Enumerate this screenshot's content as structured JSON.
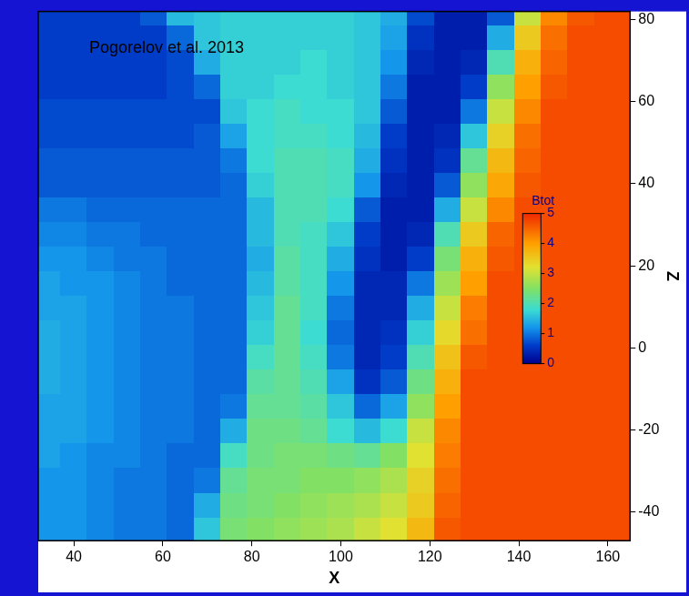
{
  "chart_data": {
    "type": "heatmap",
    "annotations": [
      "Pogorelov et al. 2013"
    ],
    "x_label": "X",
    "y_label": "Z",
    "x": [
      34,
      40,
      46,
      52,
      58,
      64,
      70,
      76,
      82,
      88,
      94,
      100,
      106,
      112,
      118,
      124,
      130,
      136,
      142,
      148,
      154,
      160,
      166
    ],
    "y": [
      -44,
      -38,
      -32,
      -26,
      -20,
      -14,
      -8,
      -2,
      4,
      10,
      16,
      22,
      28,
      34,
      40,
      46,
      52,
      58,
      64,
      70,
      76,
      82
    ],
    "values": [
      [
        1.2,
        1.2,
        1.1,
        1.0,
        1.0,
        0.9,
        1.6,
        2.4,
        2.5,
        2.6,
        2.7,
        2.8,
        3.0,
        3.2,
        3.7,
        4.6,
        4.7,
        4.7,
        4.7,
        4.7,
        4.7,
        4.7,
        4.7
      ],
      [
        1.2,
        1.2,
        1.1,
        1.0,
        1.0,
        0.9,
        1.4,
        2.3,
        2.4,
        2.5,
        2.6,
        2.7,
        2.8,
        3.0,
        3.5,
        4.5,
        4.7,
        4.7,
        4.7,
        4.7,
        4.7,
        4.7,
        4.7
      ],
      [
        1.2,
        1.2,
        1.1,
        1.0,
        1.0,
        0.9,
        1.0,
        2.2,
        2.4,
        2.4,
        2.5,
        2.5,
        2.6,
        2.8,
        3.4,
        4.4,
        4.7,
        4.7,
        4.7,
        4.7,
        4.7,
        4.7,
        4.7
      ],
      [
        1.3,
        1.2,
        1.1,
        1.1,
        1.0,
        0.9,
        0.9,
        1.9,
        2.3,
        2.4,
        2.4,
        2.3,
        2.2,
        2.5,
        3.2,
        4.3,
        4.7,
        4.7,
        4.7,
        4.7,
        4.7,
        4.7,
        4.7
      ],
      [
        1.3,
        1.3,
        1.2,
        1.1,
        1.0,
        1.0,
        0.9,
        1.4,
        2.3,
        2.3,
        2.2,
        1.8,
        1.5,
        1.8,
        3.0,
        4.2,
        4.7,
        4.7,
        4.7,
        4.7,
        4.7,
        4.7,
        4.7
      ],
      [
        1.3,
        1.3,
        1.2,
        1.1,
        1.0,
        1.0,
        0.9,
        1.0,
        2.2,
        2.2,
        2.1,
        1.6,
        0.9,
        1.3,
        2.6,
        4.0,
        4.7,
        4.7,
        4.7,
        4.7,
        4.7,
        4.7,
        4.7
      ],
      [
        1.4,
        1.3,
        1.2,
        1.1,
        1.0,
        1.0,
        0.9,
        0.9,
        2.1,
        2.2,
        2.0,
        1.3,
        0.5,
        0.8,
        2.3,
        3.8,
        4.7,
        4.7,
        4.7,
        4.7,
        4.7,
        4.7,
        4.7
      ],
      [
        1.4,
        1.3,
        1.2,
        1.1,
        1.0,
        1.0,
        0.9,
        0.9,
        1.9,
        2.2,
        1.9,
        1.0,
        0.4,
        0.6,
        2.0,
        3.6,
        4.6,
        4.7,
        4.7,
        4.7,
        4.7,
        4.7,
        4.7
      ],
      [
        1.4,
        1.3,
        1.2,
        1.1,
        1.0,
        1.0,
        0.9,
        0.9,
        1.7,
        2.2,
        1.8,
        0.9,
        0.4,
        0.5,
        1.7,
        3.3,
        4.4,
        4.7,
        4.7,
        4.7,
        4.7,
        4.7,
        4.7
      ],
      [
        1.3,
        1.3,
        1.2,
        1.1,
        1.0,
        1.0,
        0.9,
        0.9,
        1.6,
        2.2,
        1.9,
        1.0,
        0.4,
        0.4,
        1.4,
        3.0,
        4.3,
        4.7,
        4.7,
        4.7,
        4.7,
        4.7,
        4.7
      ],
      [
        1.3,
        1.2,
        1.2,
        1.1,
        1.0,
        0.9,
        0.9,
        0.9,
        1.5,
        2.1,
        1.9,
        1.2,
        0.4,
        0.4,
        1.0,
        2.7,
        4.0,
        4.7,
        4.7,
        4.7,
        4.7,
        4.7,
        4.7
      ],
      [
        1.2,
        1.2,
        1.1,
        1.0,
        1.0,
        0.9,
        0.9,
        0.9,
        1.4,
        2.1,
        1.9,
        1.4,
        0.5,
        0.3,
        0.6,
        2.4,
        3.8,
        4.6,
        4.7,
        4.7,
        4.7,
        4.7,
        4.7
      ],
      [
        1.1,
        1.1,
        1.0,
        1.0,
        0.9,
        0.9,
        0.9,
        0.9,
        1.5,
        2.0,
        1.9,
        1.6,
        0.6,
        0.3,
        0.4,
        2.0,
        3.5,
        4.5,
        4.7,
        4.7,
        4.7,
        4.7,
        4.7
      ],
      [
        1.0,
        1.0,
        0.9,
        0.9,
        0.9,
        0.9,
        0.9,
        0.9,
        1.5,
        2.0,
        2.0,
        1.8,
        0.8,
        0.3,
        0.3,
        1.4,
        3.0,
        4.2,
        4.7,
        4.7,
        4.7,
        4.7,
        4.7
      ],
      [
        0.8,
        0.8,
        0.8,
        0.8,
        0.8,
        0.8,
        0.8,
        0.9,
        1.7,
        2.0,
        2.0,
        1.9,
        1.2,
        0.4,
        0.3,
        0.8,
        2.6,
        3.9,
        4.6,
        4.7,
        4.7,
        4.7,
        4.7
      ],
      [
        0.8,
        0.8,
        0.8,
        0.8,
        0.8,
        0.8,
        0.8,
        1.0,
        1.8,
        2.0,
        2.0,
        1.9,
        1.4,
        0.5,
        0.3,
        0.5,
        2.2,
        3.7,
        4.5,
        4.7,
        4.7,
        4.7,
        4.7
      ],
      [
        0.7,
        0.7,
        0.7,
        0.7,
        0.7,
        0.7,
        0.8,
        1.3,
        1.8,
        1.9,
        1.9,
        1.8,
        1.5,
        0.6,
        0.3,
        0.4,
        1.6,
        3.4,
        4.4,
        4.7,
        4.7,
        4.7,
        4.7
      ],
      [
        0.7,
        0.7,
        0.7,
        0.7,
        0.7,
        0.7,
        0.7,
        1.6,
        1.8,
        1.9,
        1.8,
        1.8,
        1.6,
        0.8,
        0.3,
        0.3,
        1.0,
        3.0,
        4.2,
        4.7,
        4.7,
        4.7,
        4.7
      ],
      [
        0.6,
        0.6,
        0.6,
        0.6,
        0.6,
        0.7,
        0.9,
        1.7,
        1.7,
        1.8,
        1.8,
        1.7,
        1.6,
        1.0,
        0.3,
        0.3,
        0.6,
        2.6,
        4.0,
        4.6,
        4.7,
        4.7,
        4.7
      ],
      [
        0.6,
        0.6,
        0.6,
        0.6,
        0.6,
        0.7,
        1.4,
        1.7,
        1.7,
        1.7,
        1.8,
        1.7,
        1.6,
        1.2,
        0.4,
        0.3,
        0.4,
        2.0,
        3.8,
        4.5,
        4.7,
        4.7,
        4.7
      ],
      [
        0.6,
        0.6,
        0.6,
        0.6,
        0.6,
        0.9,
        1.6,
        1.7,
        1.7,
        1.7,
        1.7,
        1.7,
        1.6,
        1.3,
        0.5,
        0.3,
        0.3,
        1.4,
        3.5,
        4.4,
        4.7,
        4.7,
        4.7
      ],
      [
        0.6,
        0.6,
        0.6,
        0.6,
        0.8,
        1.5,
        1.6,
        1.7,
        1.7,
        1.7,
        1.7,
        1.7,
        1.6,
        1.4,
        0.7,
        0.3,
        0.3,
        0.8,
        3.0,
        4.2,
        4.6,
        4.7,
        4.7
      ]
    ],
    "xlim": [
      32,
      165
    ],
    "ylim": [
      -47,
      82
    ],
    "xticks": [
      40,
      60,
      80,
      100,
      120,
      140,
      160
    ],
    "yticks": [
      -40,
      -20,
      0,
      20,
      40,
      60,
      80
    ],
    "grid": false,
    "colorbar": {
      "label": "Btot",
      "range": [
        0,
        5
      ],
      "ticks": [
        0,
        1,
        2,
        3,
        4,
        5
      ]
    }
  }
}
